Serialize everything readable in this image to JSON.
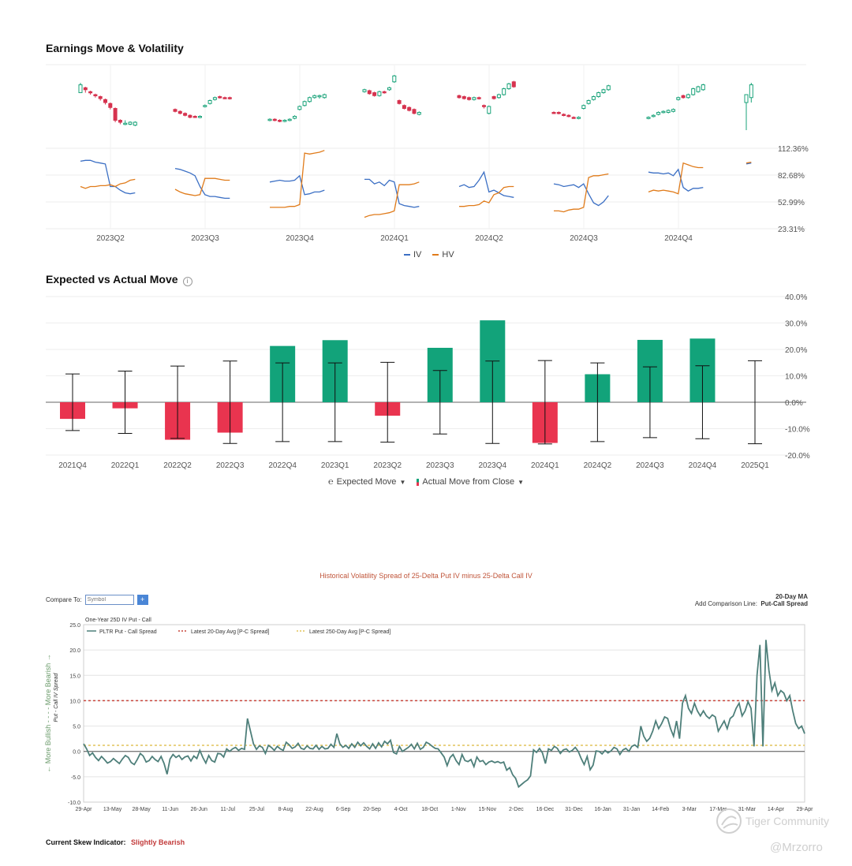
{
  "sections": {
    "earnings_title": "Earnings Move & Volatility",
    "expected_title": "Expected vs Actual Move",
    "hist_title": "Historical Volatility Spread of 25-Delta Put IV minus 25-Delta Call IV"
  },
  "chart_data": [
    {
      "type": "line",
      "title": "Earnings Move & Volatility",
      "y_tick_labels": [
        "112.36%",
        "82.68%",
        "52.99%",
        "23.31%"
      ],
      "categories": [
        "2023Q2",
        "2023Q3",
        "2023Q4",
        "2024Q1",
        "2024Q2",
        "2024Q3",
        "2024Q4"
      ],
      "legend": [
        "IV",
        "HV"
      ],
      "colors": {
        "iv": "#3b6fc4",
        "hv": "#e07b1a",
        "up": "#1aa37a",
        "down": "#d6334f"
      },
      "iv_segments": [
        [
          98,
          99,
          99,
          97,
          96,
          95,
          70,
          70,
          66,
          63,
          62,
          63
        ],
        [
          90,
          89,
          87,
          85,
          82,
          70,
          61,
          59,
          59,
          58,
          57,
          57
        ],
        [
          75,
          76,
          77,
          76,
          76,
          77,
          82,
          61,
          62,
          64,
          64,
          66
        ],
        [
          78,
          78,
          73,
          75,
          71,
          77,
          75,
          51,
          49,
          48,
          47,
          48
        ],
        [
          70,
          72,
          69,
          70,
          77,
          86,
          64,
          66,
          63,
          60,
          59,
          58
        ],
        [
          73,
          72,
          70,
          71,
          72,
          69,
          73,
          62,
          52,
          49,
          53,
          60
        ],
        [
          86,
          85,
          85,
          84,
          85,
          82,
          89,
          69,
          65,
          68,
          68,
          69
        ],
        [
          95,
          96
        ]
      ],
      "hv_segments": [
        [
          70,
          68,
          70,
          70,
          71,
          71,
          72,
          70,
          73,
          74,
          77,
          78
        ],
        [
          67,
          64,
          62,
          61,
          60,
          61,
          79,
          79,
          79,
          78,
          77,
          77
        ],
        [
          47,
          47,
          47,
          47,
          48,
          48,
          50,
          107,
          106,
          107,
          108,
          110
        ],
        [
          36,
          38,
          39,
          39,
          40,
          41,
          43,
          72,
          72,
          72,
          73,
          75
        ],
        [
          48,
          48,
          49,
          49,
          50,
          54,
          52,
          61,
          63,
          69,
          70,
          70
        ],
        [
          43,
          43,
          42,
          44,
          45,
          45,
          47,
          80,
          82,
          82,
          83,
          84
        ],
        [
          64,
          66,
          65,
          66,
          65,
          64,
          62,
          96,
          94,
          92,
          91,
          91
        ],
        [
          96,
          97
        ]
      ],
      "candle_segments": [
        [
          [
            60,
            52,
            58,
            50,
            1
          ],
          [
            56,
            50,
            55,
            53,
            0
          ],
          [
            52,
            48,
            51,
            50,
            0
          ],
          [
            49,
            45,
            48,
            47,
            0
          ],
          [
            47,
            42,
            46,
            44,
            0
          ],
          [
            44,
            38,
            43,
            40,
            0
          ],
          [
            40,
            33,
            39,
            35,
            0
          ],
          [
            35,
            20,
            34,
            22,
            0
          ],
          [
            23,
            18,
            22,
            20,
            0
          ],
          [
            22,
            17,
            18,
            19,
            1
          ],
          [
            21,
            17,
            18,
            20,
            1
          ],
          [
            21,
            16,
            17,
            20,
            1
          ]
        ],
        [
          [
            34,
            30,
            33,
            31,
            0
          ],
          [
            32,
            28,
            31,
            29,
            0
          ],
          [
            30,
            26,
            29,
            27,
            0
          ],
          [
            28,
            24,
            27,
            25,
            0
          ],
          [
            27,
            25,
            26,
            25,
            0
          ],
          [
            27,
            24,
            25,
            26,
            1
          ],
          [
            38,
            35,
            36,
            37,
            1
          ],
          [
            43,
            38,
            39,
            42,
            1
          ],
          [
            46,
            42,
            43,
            45,
            1
          ],
          [
            47,
            44,
            45,
            46,
            0
          ],
          [
            46,
            44,
            45,
            45,
            0
          ],
          [
            46,
            43,
            45,
            44,
            0
          ]
        ],
        [
          [
            24,
            21,
            22,
            23,
            1
          ],
          [
            24,
            21,
            23,
            22,
            0
          ],
          [
            23,
            20,
            22,
            21,
            0
          ],
          [
            23,
            20,
            21,
            22,
            1
          ],
          [
            24,
            21,
            22,
            23,
            1
          ],
          [
            27,
            23,
            24,
            26,
            1
          ],
          [
            37,
            32,
            33,
            36,
            1
          ],
          [
            42,
            36,
            37,
            41,
            1
          ],
          [
            46,
            40,
            41,
            45,
            1
          ],
          [
            48,
            44,
            45,
            47,
            1
          ],
          [
            48,
            44,
            46,
            47,
            1
          ],
          [
            49,
            44,
            45,
            48,
            1
          ]
        ],
        [
          [
            54,
            50,
            51,
            53,
            1
          ],
          [
            53,
            48,
            52,
            49,
            0
          ],
          [
            51,
            46,
            50,
            47,
            0
          ],
          [
            52,
            46,
            47,
            51,
            1
          ],
          [
            52,
            49,
            51,
            50,
            0
          ],
          [
            56,
            52,
            53,
            55,
            1
          ],
          [
            68,
            60,
            61,
            67,
            1
          ],
          [
            43,
            38,
            42,
            39,
            0
          ],
          [
            38,
            33,
            37,
            34,
            0
          ],
          [
            36,
            31,
            35,
            32,
            0
          ],
          [
            34,
            28,
            33,
            29,
            0
          ],
          [
            31,
            27,
            28,
            30,
            1
          ]
        ],
        [
          [
            48,
            44,
            47,
            45,
            0
          ],
          [
            47,
            43,
            46,
            44,
            0
          ],
          [
            46,
            42,
            45,
            43,
            0
          ],
          [
            46,
            42,
            43,
            45,
            1
          ],
          [
            46,
            43,
            45,
            44,
            0
          ],
          [
            38,
            34,
            37,
            36,
            0
          ],
          [
            37,
            28,
            29,
            36,
            1
          ],
          [
            47,
            43,
            46,
            44,
            0
          ],
          [
            49,
            44,
            45,
            48,
            1
          ],
          [
            55,
            47,
            48,
            54,
            1
          ],
          [
            60,
            53,
            54,
            59,
            1
          ],
          [
            62,
            55,
            61,
            56,
            0
          ]
        ],
        [
          [
            31,
            29,
            30,
            30,
            0
          ],
          [
            31,
            28,
            30,
            29,
            0
          ],
          [
            29,
            26,
            28,
            27,
            0
          ],
          [
            28,
            25,
            27,
            26,
            0
          ],
          [
            26,
            24,
            25,
            25,
            0
          ],
          [
            26,
            23,
            24,
            25,
            1
          ],
          [
            38,
            33,
            34,
            37,
            1
          ],
          [
            43,
            38,
            39,
            42,
            1
          ],
          [
            47,
            42,
            43,
            46,
            1
          ],
          [
            51,
            45,
            46,
            50,
            1
          ],
          [
            54,
            49,
            50,
            53,
            1
          ],
          [
            58,
            52,
            53,
            57,
            1
          ]
        ],
        [
          [
            26,
            23,
            24,
            25,
            1
          ],
          [
            28,
            25,
            26,
            27,
            1
          ],
          [
            31,
            27,
            28,
            30,
            1
          ],
          [
            32,
            29,
            30,
            31,
            1
          ],
          [
            33,
            29,
            30,
            32,
            1
          ],
          [
            34,
            30,
            31,
            33,
            1
          ],
          [
            46,
            42,
            43,
            45,
            1
          ],
          [
            48,
            44,
            45,
            47,
            0
          ],
          [
            49,
            44,
            45,
            48,
            1
          ],
          [
            55,
            47,
            48,
            54,
            1
          ],
          [
            57,
            50,
            51,
            56,
            1
          ],
          [
            59,
            52,
            53,
            58,
            1
          ]
        ],
        [
          [
            42,
            12,
            40,
            48,
            1
          ],
          [
            60,
            40,
            45,
            58,
            1
          ]
        ]
      ]
    },
    {
      "type": "bar",
      "title": "Expected vs Actual Move",
      "categories": [
        "2021Q4",
        "2022Q1",
        "2022Q2",
        "2022Q3",
        "2022Q4",
        "2023Q1",
        "2023Q2",
        "2023Q3",
        "2023Q4",
        "2024Q1",
        "2024Q2",
        "2024Q3",
        "2024Q4",
        "2025Q1"
      ],
      "actual_move": [
        -6.3,
        -2.3,
        -14.2,
        -11.5,
        21.3,
        23.5,
        -5.1,
        20.6,
        31.0,
        -15.4,
        10.6,
        23.6,
        24.1,
        null
      ],
      "expected_move": [
        10.7,
        11.8,
        13.7,
        15.6,
        14.9,
        14.9,
        15.1,
        12.0,
        15.6,
        15.8,
        14.9,
        13.4,
        13.8,
        15.7
      ],
      "y_tick_labels": [
        "40.0%",
        "30.0%",
        "20.0%",
        "10.0%",
        "0.0%",
        "-10.0%",
        "-20.0%"
      ],
      "ylim": [
        -20,
        40
      ],
      "legend": [
        "Expected Move",
        "Actual Move from Close"
      ],
      "colors": {
        "up": "#12a37a",
        "down": "#e9344f"
      }
    },
    {
      "type": "line",
      "title": "Historical Volatility Spread of 25-Delta Put IV minus 25-Delta Call IV",
      "subtitle": "One-Year 25D IV Put - Call",
      "ylabel": "Put - Call IV Spread",
      "side_label": "← More Bullish - - - - More Bearish →",
      "ylim": [
        -10,
        25
      ],
      "y_tick_labels": [
        "25.0",
        "20.0",
        "15.0",
        "10.0",
        "5.0",
        "0.0",
        "-5.0",
        "-10.0"
      ],
      "x_tick_labels": [
        "29-Apr",
        "13-May",
        "28-May",
        "11-Jun",
        "26-Jun",
        "11-Jul",
        "25-Jul",
        "8-Aug",
        "22-Aug",
        "6-Sep",
        "20-Sep",
        "4-Oct",
        "18-Oct",
        "1-Nov",
        "15-Nov",
        "2-Dec",
        "16-Dec",
        "31-Dec",
        "16-Jan",
        "31-Jan",
        "14-Feb",
        "3-Mar",
        "17-Mar",
        "31-Mar",
        "14-Apr",
        "29-Apr"
      ],
      "legend": [
        "PLTR Put - Call Spread",
        "Latest 20-Day Avg [P-C Spread]",
        "Latest 250-Day Avg [P-C Spread]"
      ],
      "avg_20day": 10.0,
      "avg_250day": 1.2,
      "colors": {
        "spread": "#4e7f7a",
        "avg20": "#c8463c",
        "avg250": "#e2c35a"
      },
      "series_values": [
        1.5,
        0.5,
        -0.8,
        -0.3,
        -1.2,
        -1.8,
        -1.0,
        -1.6,
        -2.3,
        -2.0,
        -1.4,
        -1.9,
        -2.4,
        -1.5,
        -0.8,
        -1.2,
        -2.2,
        -2.6,
        -1.6,
        -0.4,
        -0.9,
        -2.1,
        -1.8,
        -1.0,
        -1.6,
        -2.0,
        -1.0,
        -2.4,
        -4.5,
        -1.5,
        -0.6,
        -1.2,
        -0.8,
        -1.6,
        -1.1,
        -0.9,
        -1.9,
        -0.9,
        -1.4,
        0.2,
        -1.2,
        -2.3,
        -0.8,
        -1.8,
        -2.1,
        -0.4,
        -0.5,
        -1.1,
        0.5,
        0.0,
        0.5,
        0.8,
        0.2,
        0.6,
        0.4,
        6.5,
        4.0,
        1.5,
        0.4,
        1.1,
        0.8,
        -0.4,
        1.2,
        0.8,
        0.2,
        1.0,
        0.5,
        0.2,
        1.8,
        1.3,
        0.6,
        0.9,
        1.6,
        0.6,
        0.4,
        1.1,
        0.6,
        0.5,
        1.2,
        0.4,
        1.0,
        0.5,
        0.6,
        1.4,
        0.8,
        3.5,
        1.5,
        0.8,
        1.2,
        0.6,
        1.5,
        0.8,
        1.8,
        1.1,
        1.7,
        1.0,
        0.5,
        1.5,
        0.6,
        1.7,
        0.9,
        2.0,
        1.5,
        2.2,
        -0.2,
        -0.5,
        1.0,
        0.0,
        0.4,
        0.8,
        1.4,
        0.5,
        1.6,
        0.4,
        0.8,
        1.8,
        1.5,
        1.0,
        0.6,
        0.5,
        -0.3,
        -1.1,
        -2.8,
        -1.2,
        -0.6,
        -1.8,
        -2.6,
        -0.6,
        -1.8,
        -2.0,
        -1.6,
        -3.0,
        -1.1,
        -2.0,
        -1.8,
        -2.6,
        -2.1,
        -1.9,
        -2.2,
        -2.0,
        -2.3,
        -2.1,
        -3.7,
        -3.2,
        -4.6,
        -5.3,
        -7.0,
        -6.5,
        -6.0,
        -5.6,
        -4.8,
        0.3,
        -0.2,
        0.6,
        -0.3,
        -2.4,
        0.5,
        0.2,
        1.0,
        0.6,
        -0.4,
        0.3,
        0.5,
        -0.1,
        0.2,
        0.8,
        0.0,
        -1.4,
        -2.6,
        -1.0,
        -3.6,
        -2.7,
        0.1,
        0.0,
        -0.5,
        0.2,
        -0.3,
        0.1,
        0.8,
        0.5,
        -0.6,
        0.3,
        0.6,
        0.0,
        1.0,
        1.3,
        0.8,
        5.0,
        3.0,
        2.0,
        2.6,
        4.0,
        6.0,
        4.5,
        5.5,
        6.8,
        6.5,
        4.5,
        3.0,
        6.0,
        2.5,
        9.5,
        11.0,
        8.5,
        7.5,
        9.5,
        8.0,
        7.0,
        8.0,
        7.0,
        6.5,
        7.2,
        6.8,
        4.0,
        5.0,
        6.0,
        4.5,
        6.5,
        7.0,
        8.5,
        9.5,
        7.0,
        8.0,
        9.8,
        8.5,
        1.0,
        15.0,
        21.0,
        1.0,
        22.0,
        16.0,
        12.0,
        13.5,
        11.0,
        12.0,
        11.5,
        10.0,
        11.0,
        8.0,
        5.5,
        4.5,
        5.0,
        3.5
      ]
    }
  ],
  "compare": {
    "label": "Compare To:",
    "placeholder": "Symbol",
    "plus": "+"
  },
  "add_comparison": {
    "label": "Add Comparison Line:",
    "line1": "20-Day MA",
    "line2": "Put-Call Spread"
  },
  "skew": {
    "label": "Current Skew Indicator:",
    "value": "Slightly Bearish"
  },
  "watermarks": {
    "community": "Tiger Community",
    "user": "@Mrzorro"
  }
}
